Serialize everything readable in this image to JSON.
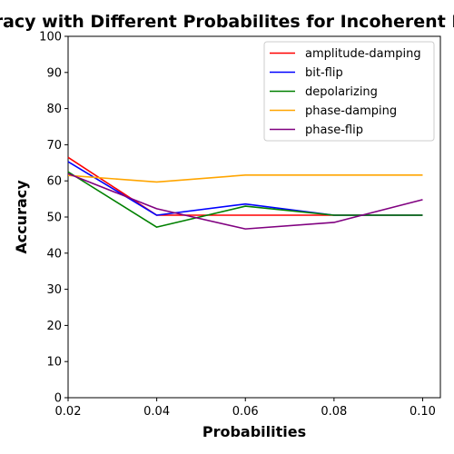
{
  "chart_data": {
    "type": "line",
    "title": "Accuracy with Different Probabilites for Incoherent Noise",
    "xlabel": "Probabilities",
    "ylabel": "Accuracy",
    "x": [
      0.02,
      0.04,
      0.06,
      0.08,
      0.1
    ],
    "xlim": [
      0.02,
      0.104
    ],
    "ylim": [
      0,
      100
    ],
    "xticks": [
      "0.02",
      "0.04",
      "0.06",
      "0.08",
      "0.10"
    ],
    "yticks": [
      "0",
      "10",
      "20",
      "30",
      "40",
      "50",
      "60",
      "70",
      "80",
      "90",
      "100"
    ],
    "grid": false,
    "legend": "top-right",
    "series": [
      {
        "name": "amplitude-damping",
        "color": "#ff0000",
        "values": [
          66.5,
          50.5,
          50.5,
          50.5,
          50.5
        ]
      },
      {
        "name": "bit-flip",
        "color": "#0000ff",
        "values": [
          65.3,
          50.5,
          53.6,
          50.5,
          50.5
        ]
      },
      {
        "name": "depolarizing",
        "color": "#008000",
        "values": [
          62.5,
          47.2,
          53.0,
          50.5,
          50.5
        ]
      },
      {
        "name": "phase-damping",
        "color": "#ffa500",
        "values": [
          61.5,
          59.7,
          61.6,
          61.6,
          61.6
        ]
      },
      {
        "name": "phase-flip",
        "color": "#800080",
        "values": [
          62.0,
          52.3,
          46.7,
          48.5,
          54.8
        ]
      }
    ]
  }
}
